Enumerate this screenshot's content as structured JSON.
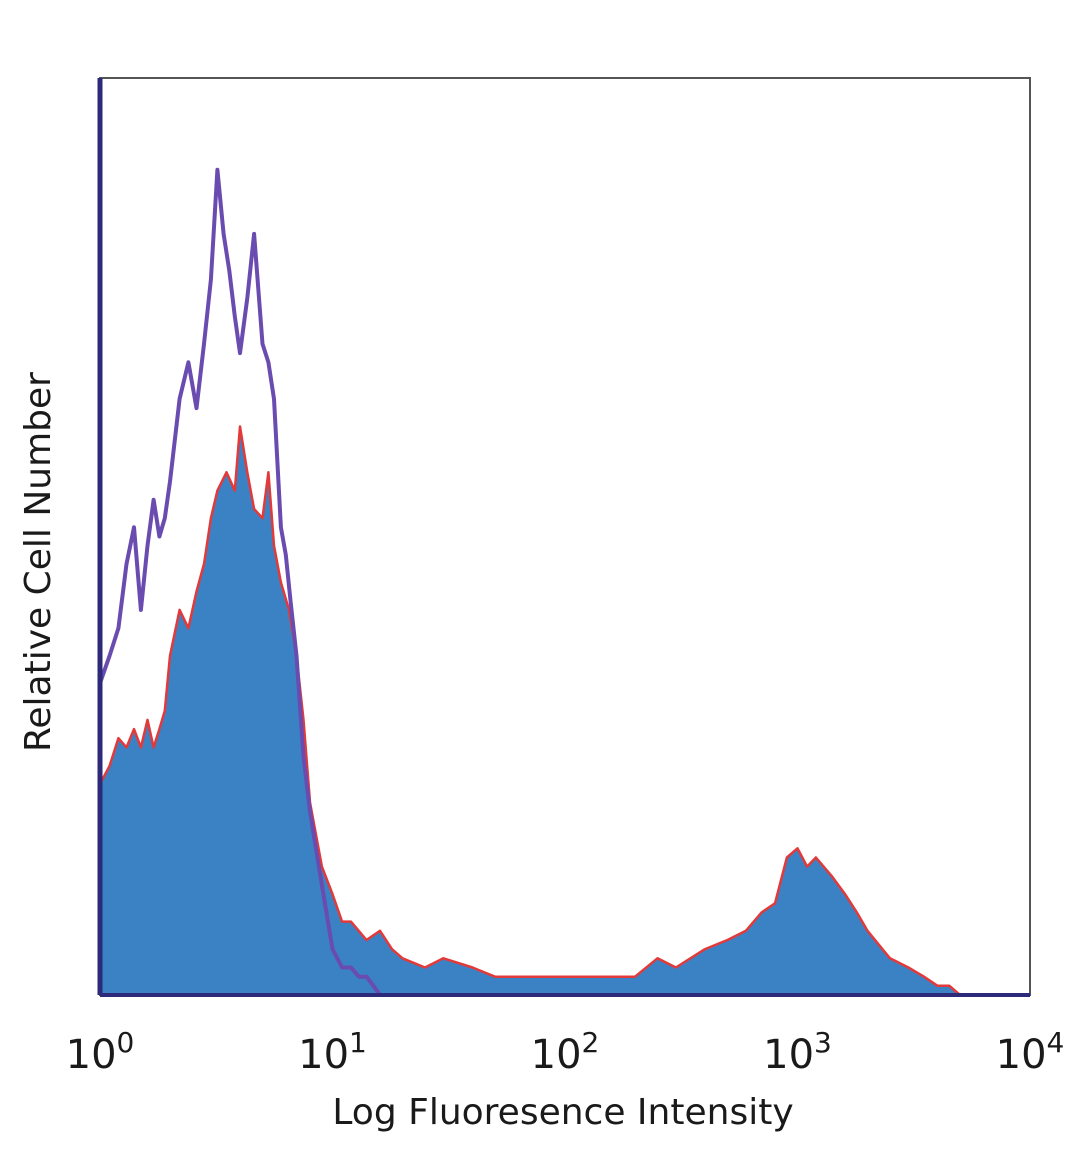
{
  "chart_data": {
    "type": "area",
    "title": "",
    "xlabel": "Log Fluoresence Intensity",
    "ylabel": "Relative Cell Number",
    "x_scale": "log",
    "xlim": [
      1,
      10000
    ],
    "ylim": [
      0,
      100
    ],
    "grid": false,
    "legend": "none",
    "x_ticks": [
      {
        "base": "10",
        "exp": "0",
        "value": 1
      },
      {
        "base": "10",
        "exp": "1",
        "value": 10
      },
      {
        "base": "10",
        "exp": "2",
        "value": 100
      },
      {
        "base": "10",
        "exp": "3",
        "value": 1000
      },
      {
        "base": "10",
        "exp": "4",
        "value": 10000
      }
    ],
    "series": [
      {
        "style": "filled",
        "color": "#3b82c4",
        "edge_color": "#e23a3a",
        "x": [
          1.0,
          1.1,
          1.2,
          1.3,
          1.4,
          1.5,
          1.6,
          1.7,
          1.8,
          1.9,
          2.0,
          2.2,
          2.4,
          2.6,
          2.8,
          3.0,
          3.2,
          3.5,
          3.8,
          4.0,
          4.3,
          4.6,
          5.0,
          5.3,
          5.6,
          6.0,
          6.5,
          7.0,
          7.5,
          8.0,
          9.0,
          10.0,
          11.0,
          12.0,
          14.0,
          16.0,
          18.0,
          20.0,
          25.0,
          30.0,
          40.0,
          50.0,
          60.0,
          80.0,
          100.0,
          120.0,
          150.0,
          200.0,
          250.0,
          300.0,
          400.0,
          500.0,
          600.0,
          700.0,
          800.0,
          900.0,
          1000.0,
          1100.0,
          1200.0,
          1400.0,
          1600.0,
          1800.0,
          2000.0,
          2500.0,
          3000.0,
          3500.0,
          4000.0,
          4500.0,
          5000.0
        ],
        "values": [
          23,
          25,
          28,
          27,
          29,
          27,
          30,
          27,
          29,
          31,
          37,
          42,
          40,
          44,
          47,
          52,
          55,
          57,
          55,
          62,
          57,
          53,
          52,
          57,
          49,
          45,
          42,
          37,
          30,
          21,
          14,
          11,
          8,
          8,
          6,
          7,
          5,
          4,
          3,
          4,
          3,
          2,
          2,
          2,
          2,
          2,
          2,
          2,
          4,
          3,
          5,
          6,
          7,
          9,
          10,
          15,
          16,
          14,
          15,
          13,
          11,
          9,
          7,
          4,
          3,
          2,
          1,
          1,
          0
        ]
      },
      {
        "style": "line",
        "color": "#6a4bb0",
        "x": [
          1.0,
          1.1,
          1.2,
          1.3,
          1.4,
          1.5,
          1.6,
          1.7,
          1.8,
          1.9,
          2.0,
          2.2,
          2.4,
          2.6,
          2.8,
          3.0,
          3.2,
          3.4,
          3.6,
          3.8,
          4.0,
          4.3,
          4.6,
          5.0,
          5.3,
          5.6,
          6.0,
          6.3,
          6.6,
          7.0,
          7.5,
          8.0,
          9.0,
          10.0,
          11.0,
          12.0,
          13.0,
          14.0,
          15.0,
          16.0
        ],
        "values": [
          34,
          37,
          40,
          47,
          51,
          42,
          49,
          54,
          50,
          52,
          56,
          65,
          69,
          64,
          71,
          78,
          90,
          83,
          79,
          74,
          70,
          76,
          83,
          71,
          69,
          65,
          51,
          48,
          43,
          37,
          26,
          20,
          12,
          5,
          3,
          3,
          2,
          2,
          1,
          0
        ]
      }
    ]
  }
}
